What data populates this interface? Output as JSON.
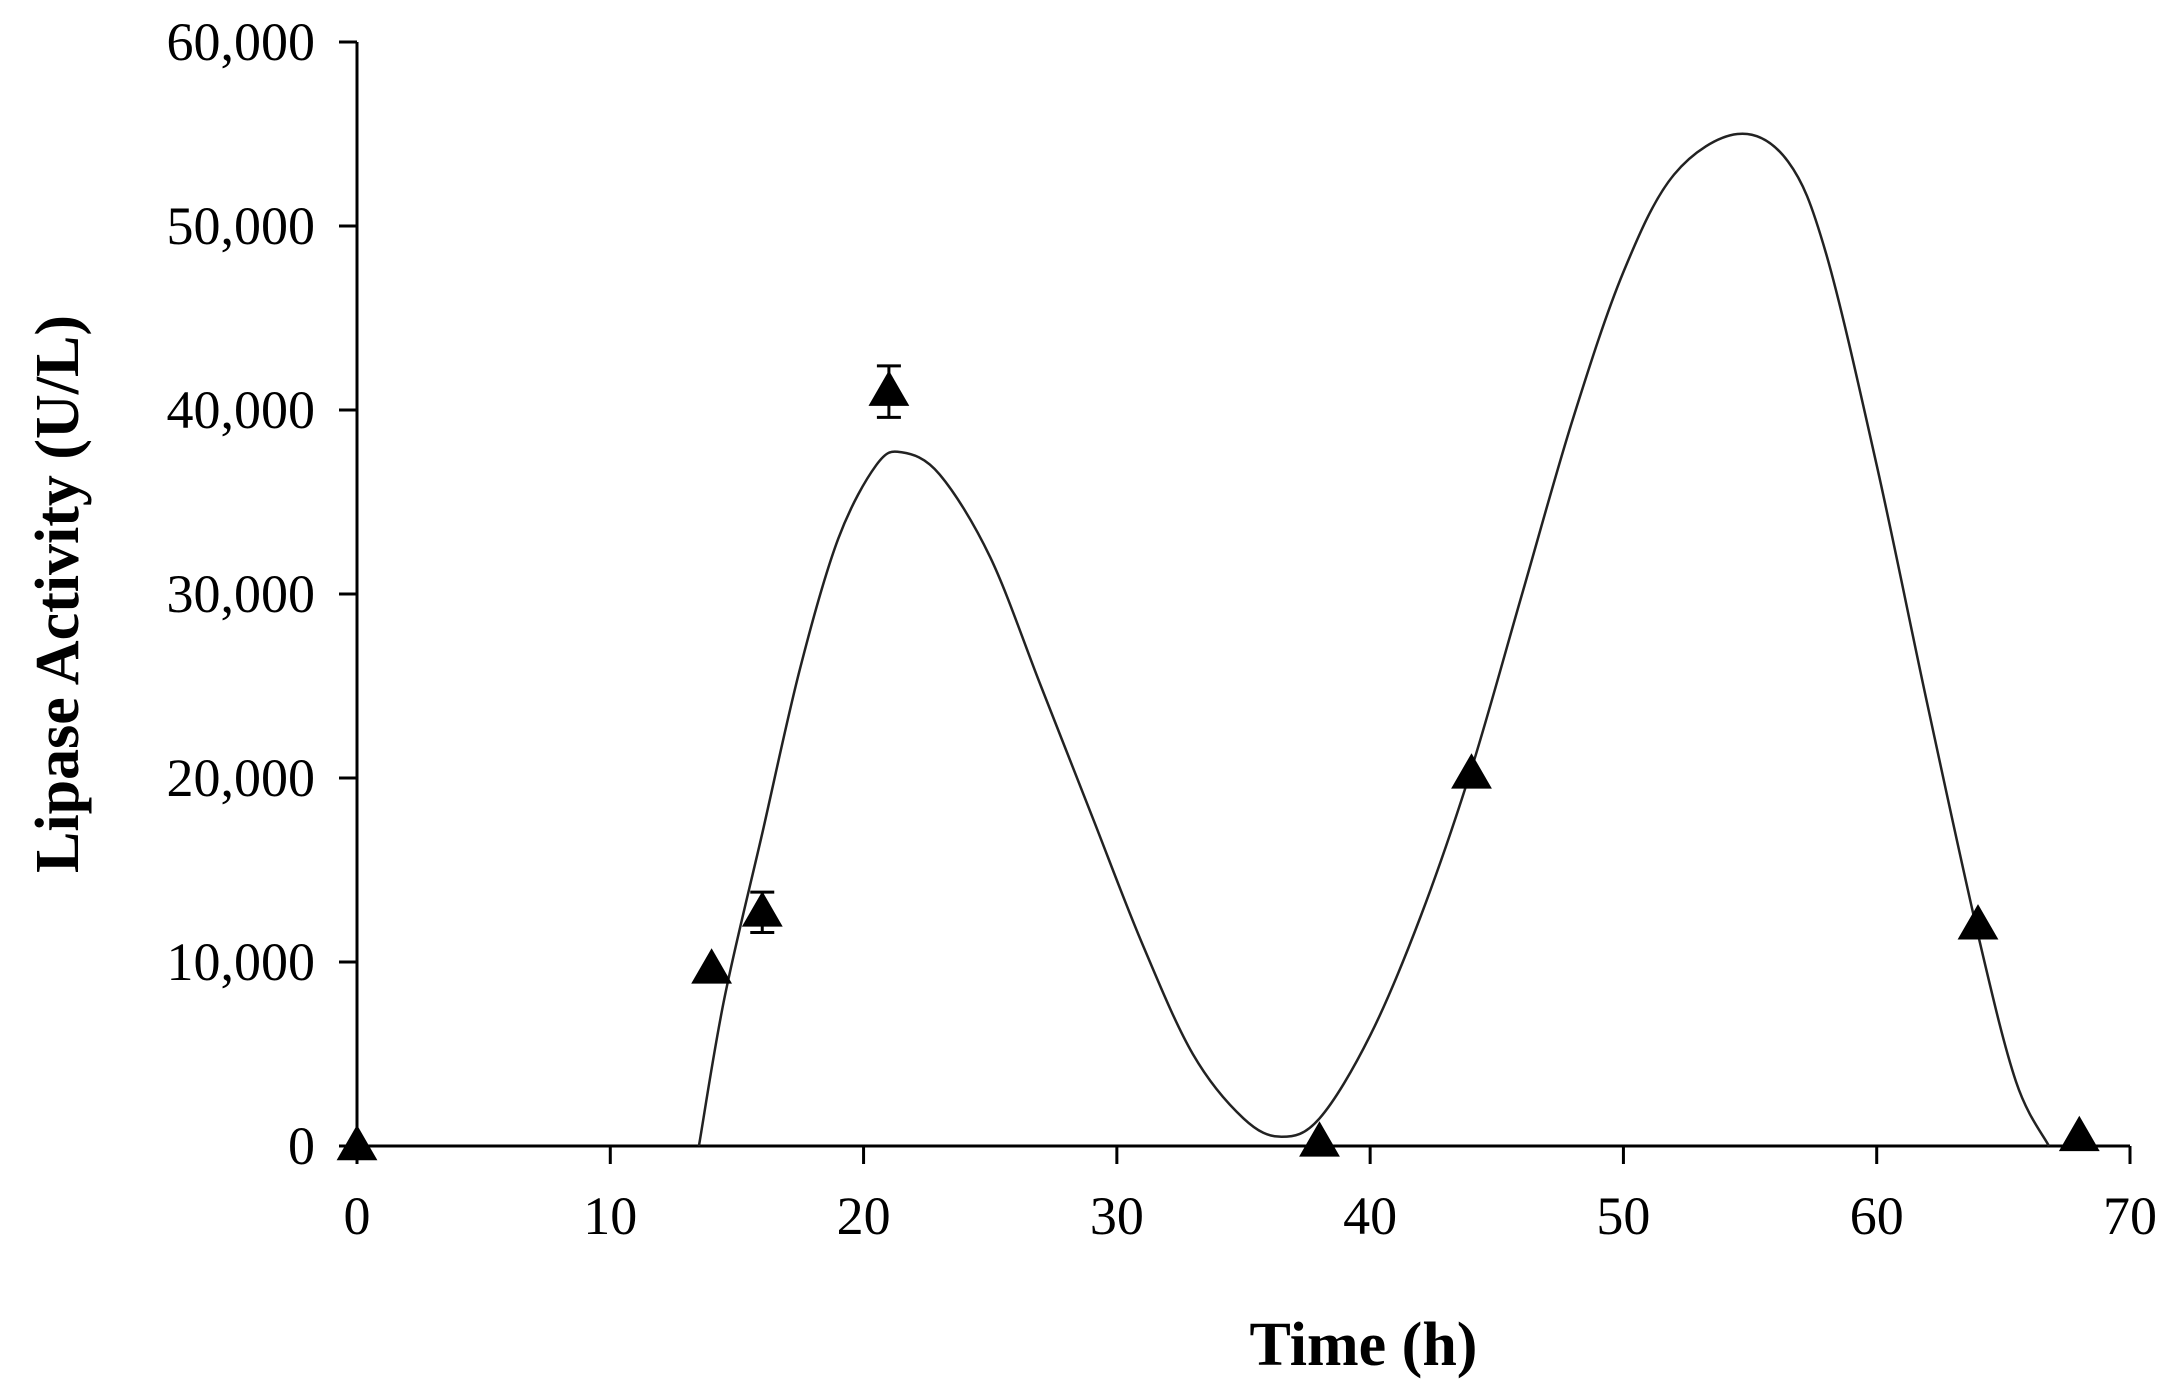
{
  "chart_data": {
    "type": "scatter",
    "title": "",
    "xlabel": "Time  (h)",
    "ylabel": "Lipase Activity  (U/L)",
    "xlim": [
      0,
      70
    ],
    "ylim": [
      0,
      60000
    ],
    "x_ticks": [
      0,
      10,
      20,
      30,
      40,
      50,
      60,
      70
    ],
    "x_tick_labels": [
      "0",
      "10",
      "20",
      "30",
      "40",
      "50",
      "60",
      "70"
    ],
    "y_ticks": [
      0,
      10000,
      20000,
      30000,
      40000,
      50000,
      60000
    ],
    "y_tick_labels": [
      "0",
      "10,000",
      "20,000",
      "30,000",
      "40,000",
      "50,000",
      "60,000"
    ],
    "grid": false,
    "legend": "none",
    "marker": "filled-triangle",
    "marker_color": "#000000",
    "curve_color": "#222222",
    "series": [
      {
        "points": [
          {
            "x": 0,
            "y": 0,
            "err": 0
          },
          {
            "x": 14,
            "y": 9600,
            "err": 0
          },
          {
            "x": 16,
            "y": 12700,
            "err": 1100
          },
          {
            "x": 21,
            "y": 41000,
            "err": 1400
          },
          {
            "x": 38,
            "y": 200,
            "err": 0
          },
          {
            "x": 44,
            "y": 20200,
            "err": 0
          },
          {
            "x": 64,
            "y": 12000,
            "err": 0
          },
          {
            "x": 68,
            "y": 500,
            "err": 0
          }
        ]
      }
    ],
    "fit_curve": [
      [
        13.5,
        0
      ],
      [
        14.5,
        8000
      ],
      [
        16,
        17000
      ],
      [
        17.5,
        26000
      ],
      [
        19,
        33000
      ],
      [
        20.5,
        37000
      ],
      [
        21.5,
        37700
      ],
      [
        23,
        36500
      ],
      [
        25,
        32000
      ],
      [
        27,
        25000
      ],
      [
        29,
        18000
      ],
      [
        31,
        11000
      ],
      [
        33,
        5000
      ],
      [
        35,
        1500
      ],
      [
        36.5,
        500
      ],
      [
        38,
        1500
      ],
      [
        40,
        6000
      ],
      [
        42,
        12500
      ],
      [
        44,
        20500
      ],
      [
        46,
        30000
      ],
      [
        48,
        39500
      ],
      [
        50,
        47500
      ],
      [
        52,
        52800
      ],
      [
        54.5,
        55000
      ],
      [
        56.5,
        53500
      ],
      [
        58,
        48500
      ],
      [
        60,
        37000
      ],
      [
        62,
        24000
      ],
      [
        64,
        11500
      ],
      [
        65.5,
        3500
      ],
      [
        66.8,
        0
      ]
    ]
  }
}
